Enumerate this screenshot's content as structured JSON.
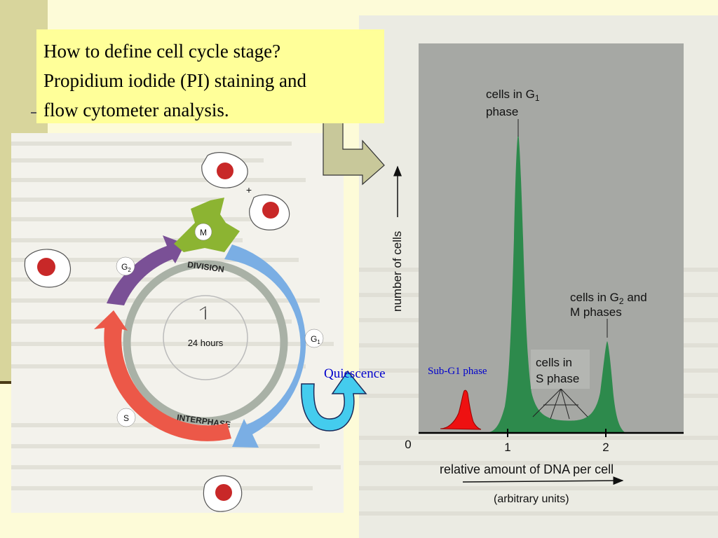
{
  "title": {
    "lines": [
      "How to define cell cycle stage?",
      "Propidium iodide (PI) staining and",
      "flow cytometer  analysis."
    ]
  },
  "cell_cycle_diagram": {
    "phase_m": "M",
    "phase_g1": "G1",
    "phase_s": "S",
    "phase_g2": "G2",
    "division_label": "DIVISION",
    "interphase_label": "INTERPHASE",
    "center_label": "24 hours",
    "plus_sign": "+",
    "colors": {
      "m_phase": "#8cb432",
      "g1_phase": "#7aaee4",
      "s_phase": "#ec5848",
      "g2_phase": "#7a5096",
      "nucleus": "#c82828"
    }
  },
  "histogram": {
    "y_axis_label": "number of cells",
    "x_axis_label": "relative amount of DNA per cell",
    "x_axis_units": "(arbitrary units)",
    "x_tick_0": "0",
    "x_tick_1": "1",
    "x_tick_2": "2",
    "label_g1_line1": "cells in G",
    "label_g1_sub": "1",
    "label_g1_line2": "phase",
    "label_g2_line1a": "cells in G",
    "label_g2_sub": "2",
    "label_g2_line1b": " and",
    "label_g2_line2": "M phases",
    "label_s_line1": "cells in",
    "label_s_line2": "S phase",
    "colors": {
      "background": "#a6a8a4",
      "peaks": "#2d8a4c",
      "sub_g1": "#ee1111"
    }
  },
  "annotations": {
    "quiescence": "Quiescence",
    "sub_g1": "Sub-G1 phase",
    "text_color": "#0000cc",
    "arrow_color": "#44ccee"
  }
}
